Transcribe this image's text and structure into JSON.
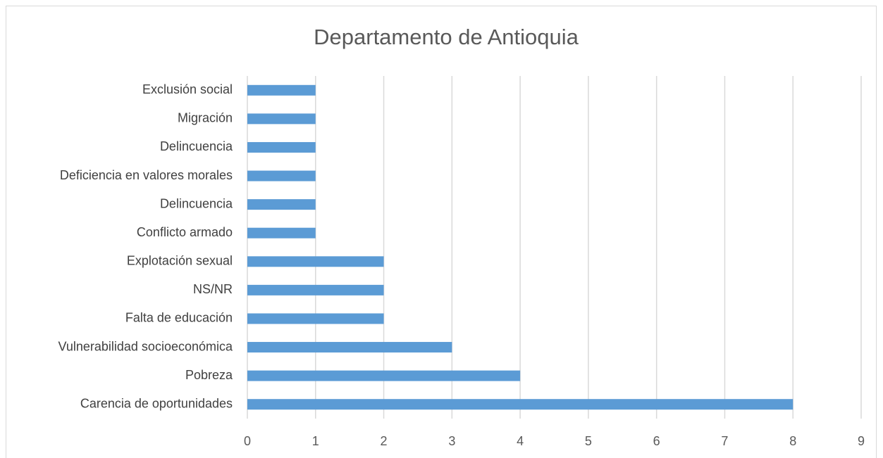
{
  "chart_data": {
    "type": "hbar",
    "title": "Departamento de Antioquia",
    "categories": [
      "Exclusión social",
      "Migración",
      "Delincuencia ",
      "Deficiencia en valores morales",
      "Delincuencia",
      "Conflicto armado",
      "Explotación sexual",
      "NS/NR",
      "Falta de educación",
      "Vulnerabilidad socioeconómica",
      "Pobreza",
      "Carencia de oportunidades"
    ],
    "values": [
      1,
      1,
      1,
      1,
      1,
      1,
      2,
      2,
      2,
      3,
      4,
      8
    ],
    "color": "#5b9bd5",
    "xlim": [
      0,
      9
    ],
    "xticks": [
      0,
      1,
      2,
      3,
      4,
      5,
      6,
      7,
      8,
      9
    ],
    "grid": true
  }
}
